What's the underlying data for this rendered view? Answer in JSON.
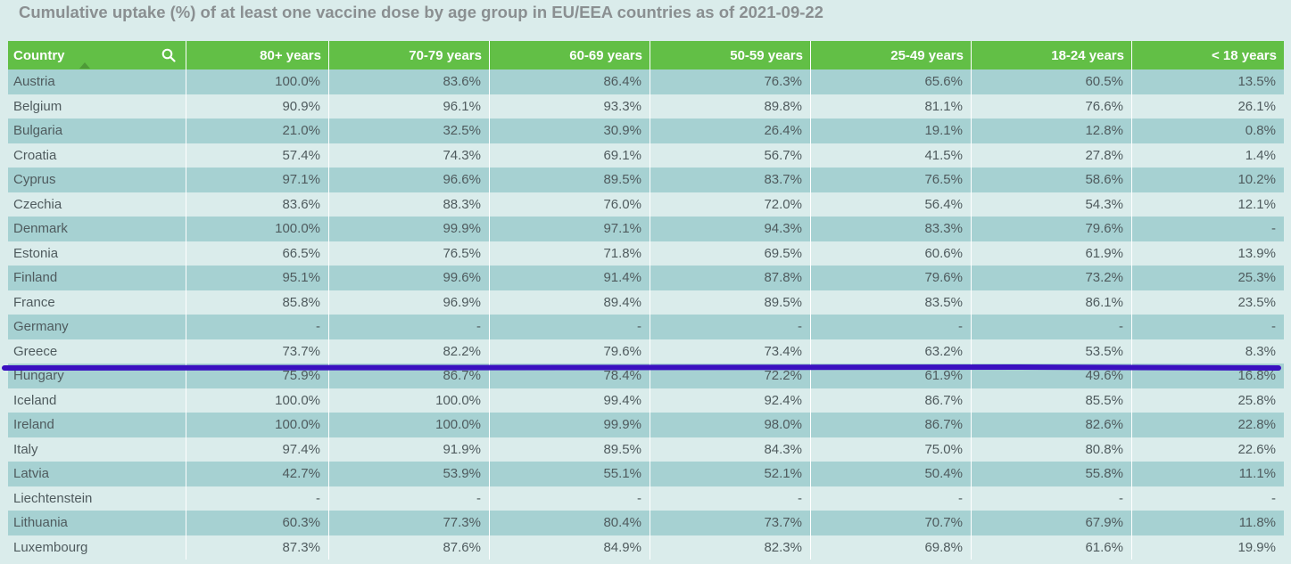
{
  "title": "Cumulative uptake (%) of at least one vaccine dose by age group in EU/EEA countries as of 2021-09-22",
  "icons": {
    "search": "search-icon",
    "sort": "sort-ascending-icon"
  },
  "colors": {
    "header": "#62bf46",
    "row_odd": "#a6d1d2",
    "row_even": "#daeceb",
    "annotation_line": "#3a10c0"
  },
  "chart_data": {
    "type": "table",
    "title": "Cumulative uptake (%) of at least one vaccine dose by age group in EU/EEA countries as of 2021-09-22",
    "columns": [
      "Country",
      "80+ years",
      "70-79 years",
      "60-69 years",
      "50-59 years",
      "25-49 years",
      "18-24 years",
      "< 18 years"
    ],
    "rows": [
      [
        "Austria",
        "100.0%",
        "83.6%",
        "86.4%",
        "76.3%",
        "65.6%",
        "60.5%",
        "13.5%"
      ],
      [
        "Belgium",
        "90.9%",
        "96.1%",
        "93.3%",
        "89.8%",
        "81.1%",
        "76.6%",
        "26.1%"
      ],
      [
        "Bulgaria",
        "21.0%",
        "32.5%",
        "30.9%",
        "26.4%",
        "19.1%",
        "12.8%",
        "0.8%"
      ],
      [
        "Croatia",
        "57.4%",
        "74.3%",
        "69.1%",
        "56.7%",
        "41.5%",
        "27.8%",
        "1.4%"
      ],
      [
        "Cyprus",
        "97.1%",
        "96.6%",
        "89.5%",
        "83.7%",
        "76.5%",
        "58.6%",
        "10.2%"
      ],
      [
        "Czechia",
        "83.6%",
        "88.3%",
        "76.0%",
        "72.0%",
        "56.4%",
        "54.3%",
        "12.1%"
      ],
      [
        "Denmark",
        "100.0%",
        "99.9%",
        "97.1%",
        "94.3%",
        "83.3%",
        "79.6%",
        "-"
      ],
      [
        "Estonia",
        "66.5%",
        "76.5%",
        "71.8%",
        "69.5%",
        "60.6%",
        "61.9%",
        "13.9%"
      ],
      [
        "Finland",
        "95.1%",
        "99.6%",
        "91.4%",
        "87.8%",
        "79.6%",
        "73.2%",
        "25.3%"
      ],
      [
        "France",
        "85.8%",
        "96.9%",
        "89.4%",
        "89.5%",
        "83.5%",
        "86.1%",
        "23.5%"
      ],
      [
        "Germany",
        "-",
        "-",
        "-",
        "-",
        "-",
        "-",
        "-"
      ],
      [
        "Greece",
        "73.7%",
        "82.2%",
        "79.6%",
        "73.4%",
        "63.2%",
        "53.5%",
        "8.3%"
      ],
      [
        "Hungary",
        "75.9%",
        "86.7%",
        "78.4%",
        "72.2%",
        "61.9%",
        "49.6%",
        "16.8%"
      ],
      [
        "Iceland",
        "100.0%",
        "100.0%",
        "99.4%",
        "92.4%",
        "86.7%",
        "85.5%",
        "25.8%"
      ],
      [
        "Ireland",
        "100.0%",
        "100.0%",
        "99.9%",
        "98.0%",
        "86.7%",
        "82.6%",
        "22.8%"
      ],
      [
        "Italy",
        "97.4%",
        "91.9%",
        "89.5%",
        "84.3%",
        "75.0%",
        "80.8%",
        "22.6%"
      ],
      [
        "Latvia",
        "42.7%",
        "53.9%",
        "55.1%",
        "52.1%",
        "50.4%",
        "55.8%",
        "11.1%"
      ],
      [
        "Liechtenstein",
        "-",
        "-",
        "-",
        "-",
        "-",
        "-",
        "-"
      ],
      [
        "Lithuania",
        "60.3%",
        "77.3%",
        "80.4%",
        "73.7%",
        "70.7%",
        "67.9%",
        "11.8%"
      ],
      [
        "Luxembourg",
        "87.3%",
        "87.6%",
        "84.9%",
        "82.3%",
        "69.8%",
        "61.6%",
        "19.9%"
      ]
    ],
    "sort": {
      "column": "Country",
      "direction": "ascending"
    },
    "annotation": {
      "type": "horizontal-line",
      "between_rows": [
        "Greece",
        "Hungary"
      ],
      "color": "#3a10c0"
    }
  }
}
